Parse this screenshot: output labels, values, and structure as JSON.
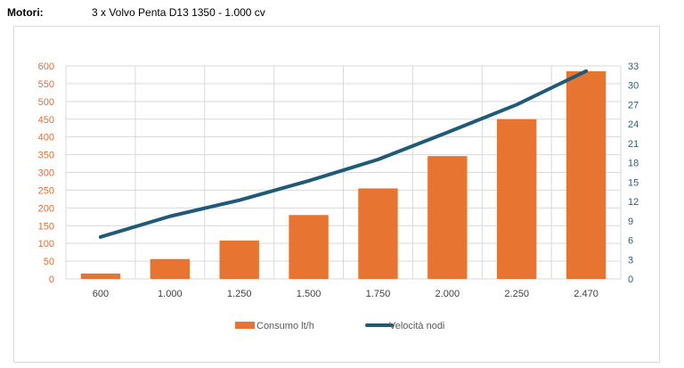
{
  "header": {
    "label": "Motori:",
    "value": "3 x Volvo Penta D13 1350 - 1.000 cv"
  },
  "chart_data": {
    "type": "bar",
    "categories": [
      "600",
      "1.000",
      "1.250",
      "1.500",
      "1.750",
      "2.000",
      "2.250",
      "2.470"
    ],
    "series": [
      {
        "name": "Consumo lt/h",
        "type": "bar",
        "axis": "left",
        "color": "#e87431",
        "values": [
          15,
          56,
          108,
          180,
          255,
          346,
          450,
          585
        ]
      },
      {
        "name": "Velocità nodi",
        "type": "line",
        "axis": "right",
        "color": "#1f5a78",
        "values": [
          6.5,
          9.7,
          12.2,
          15.2,
          18.5,
          22.7,
          27.0,
          32.2
        ]
      }
    ],
    "y_left": {
      "min": 0,
      "max": 600,
      "ticks": [
        "0",
        "50",
        "100",
        "150",
        "200",
        "250",
        "300",
        "350",
        "400",
        "450",
        "500",
        "550",
        "600"
      ]
    },
    "y_right": {
      "min": 0,
      "max": 33,
      "ticks": [
        "0",
        "3",
        "6",
        "9",
        "12",
        "15",
        "18",
        "21",
        "24",
        "27",
        "30",
        "33"
      ]
    },
    "grid": true,
    "legend_position": "bottom"
  }
}
